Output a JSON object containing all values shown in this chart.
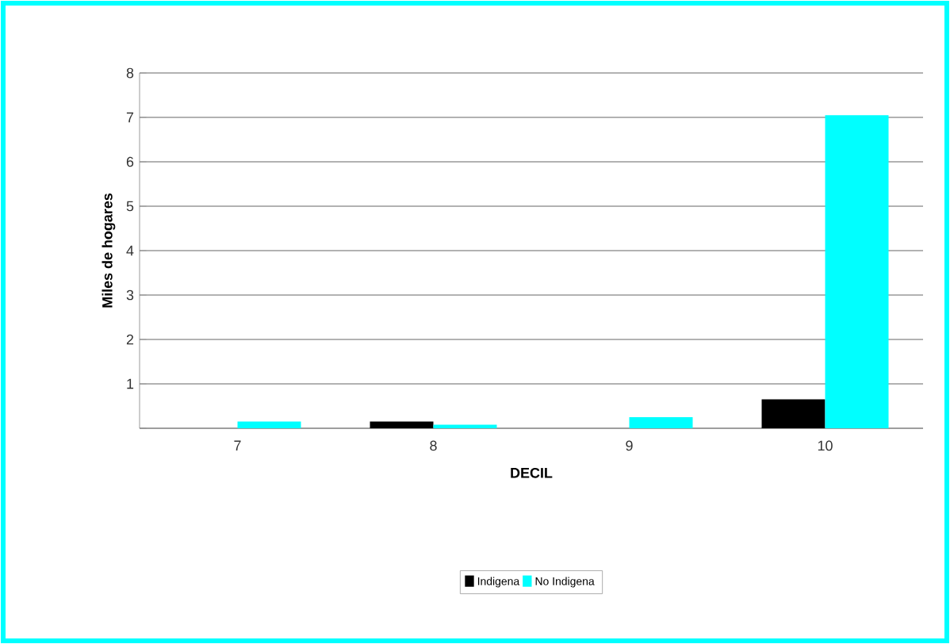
{
  "chart_data": {
    "type": "bar",
    "xlabel": "DECIL",
    "ylabel": "Miles de hogares",
    "categories": [
      "7",
      "8",
      "9",
      "10"
    ],
    "series": [
      {
        "name": "Indigena",
        "color": "#000000",
        "values": [
          0,
          0.15,
          0,
          0.65
        ]
      },
      {
        "name": "No Indigena",
        "color": "#00ffff",
        "values": [
          0.15,
          0.08,
          0.25,
          7.05
        ]
      }
    ],
    "ylim": [
      0,
      8
    ],
    "yticks": [
      {
        "value": 0,
        "label": null
      },
      1,
      2,
      3,
      4,
      5,
      6,
      7,
      8
    ],
    "grid": "y",
    "legend": "bottom"
  }
}
